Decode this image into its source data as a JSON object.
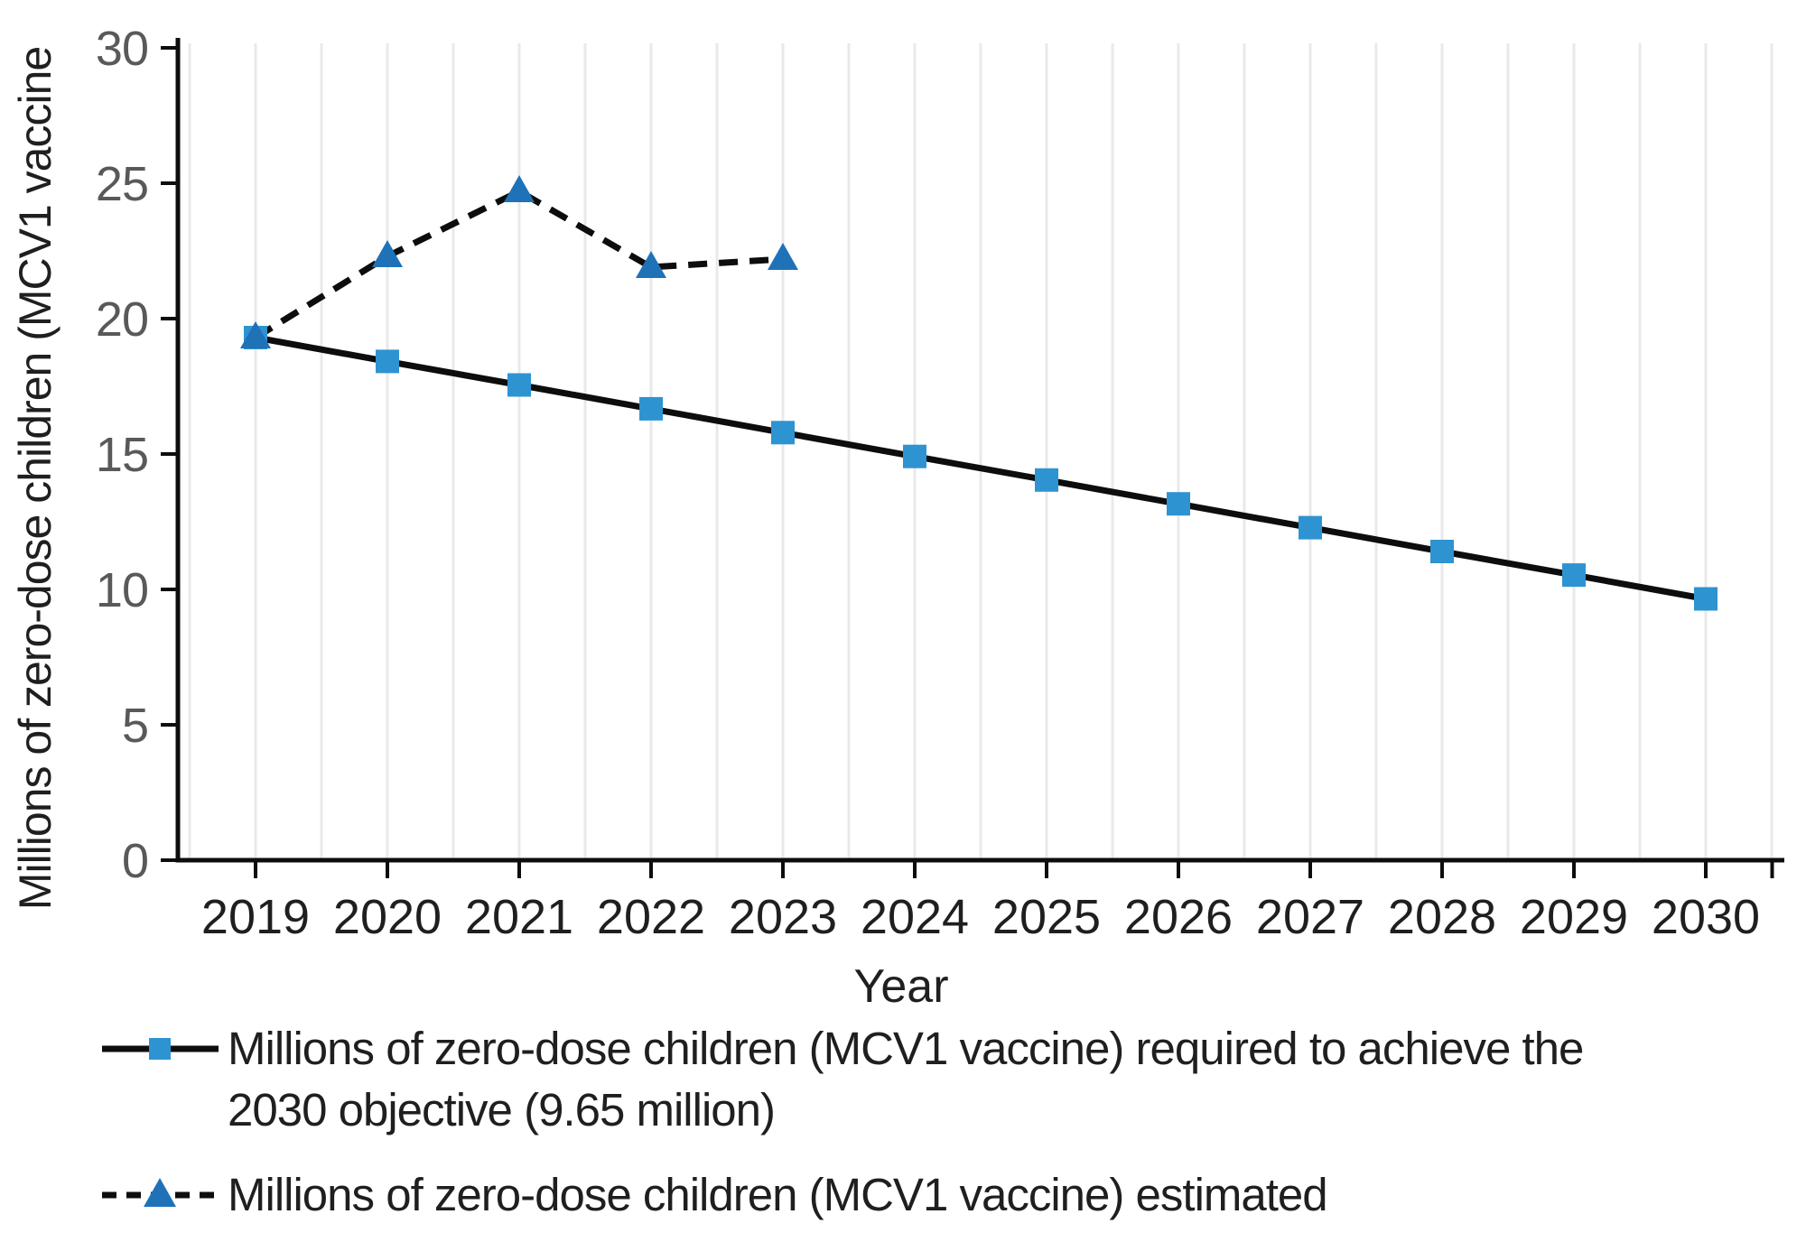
{
  "chart_data": {
    "type": "line",
    "title": "",
    "xlabel": "Year",
    "ylabel": "Millions of zero-dose children (MCV1 vaccine",
    "x": [
      2019,
      2020,
      2021,
      2022,
      2023,
      2024,
      2025,
      2026,
      2027,
      2028,
      2029,
      2030
    ],
    "ylim": [
      0,
      30
    ],
    "ytick_step": 5,
    "grid": "vertical-half-year-gridlines",
    "legend_position": "bottom-left",
    "series": [
      {
        "name": "required",
        "legend_lines": [
          "Millions of zero-dose children (MCV1 vaccine) required to achieve the",
          "2030 objective (9.65 million)"
        ],
        "line_style": "solid",
        "marker": "square",
        "values": [
          19.3,
          18.42,
          17.55,
          16.67,
          15.79,
          14.91,
          14.04,
          13.16,
          12.28,
          11.4,
          10.53,
          9.65
        ]
      },
      {
        "name": "estimated",
        "legend_lines": [
          "Millions of zero-dose children (MCV1 vaccine) estimated"
        ],
        "line_style": "dashed",
        "marker": "triangle",
        "values": [
          19.3,
          22.3,
          24.7,
          21.9,
          22.2
        ]
      }
    ],
    "colors": {
      "background": "#ffffff",
      "line": "#0d0d0d",
      "grid": "#e9e9e9",
      "y_tick_label": "#595959",
      "x_tick_label": "#1f1f1f",
      "text": "#1f1f1f",
      "square_marker": "#2e93d1",
      "triangle_marker": "#1f72b8"
    }
  }
}
